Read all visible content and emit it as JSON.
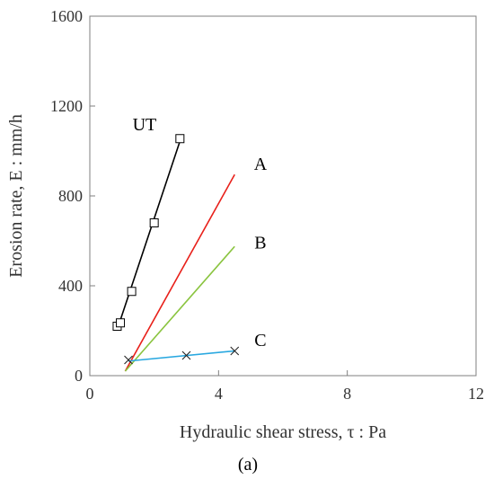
{
  "chart_data": {
    "type": "scatter",
    "xlabel": "Hydraulic shear stress, τ : Pa",
    "ylabel": "Erosion rate, E : mm/h",
    "xlim": [
      0,
      12
    ],
    "ylim": [
      0,
      1600
    ],
    "xticks": [
      0,
      4,
      8,
      12
    ],
    "yticks": [
      0,
      400,
      800,
      1200,
      1600
    ],
    "grid": false,
    "panel_label": "(a)",
    "series": [
      {
        "name": "UT",
        "color": "#000000",
        "marker": "square",
        "points": [
          [
            0.85,
            220
          ],
          [
            0.95,
            235
          ],
          [
            1.3,
            375
          ],
          [
            2.0,
            680
          ],
          [
            2.8,
            1055
          ]
        ],
        "fit_line": [
          [
            0.85,
            205
          ],
          [
            2.85,
            1065
          ]
        ],
        "label_at": [
          1.7,
          1120
        ]
      },
      {
        "name": "A",
        "color": "#e8201a",
        "marker": "none",
        "points": [],
        "fit_line": [
          [
            1.1,
            20
          ],
          [
            4.5,
            895
          ]
        ],
        "label_at": [
          5.3,
          945
        ]
      },
      {
        "name": "B",
        "color": "#8ac43f",
        "marker": "none",
        "points": [],
        "fit_line": [
          [
            1.1,
            20
          ],
          [
            4.5,
            575
          ]
        ],
        "label_at": [
          5.3,
          595
        ]
      },
      {
        "name": "C",
        "color": "#29a8e0",
        "marker": "x",
        "points": [
          [
            1.2,
            70
          ],
          [
            3.0,
            90
          ],
          [
            4.5,
            110
          ]
        ],
        "fit_line": [
          [
            1.2,
            65
          ],
          [
            4.5,
            110
          ]
        ],
        "label_at": [
          5.3,
          160
        ]
      }
    ]
  }
}
